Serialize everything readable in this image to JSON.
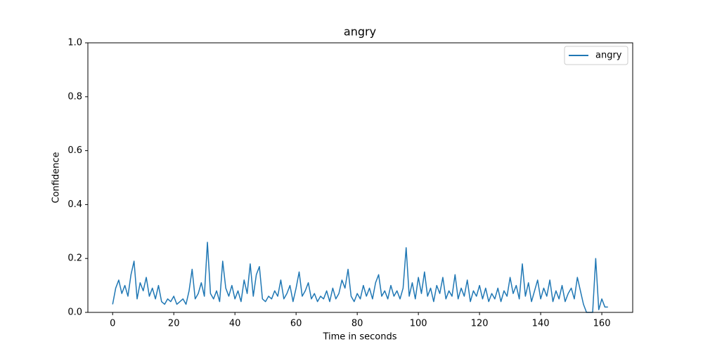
{
  "chart_data": {
    "type": "line",
    "title": "angry",
    "xlabel": "Time in seconds",
    "ylabel": "Confidence",
    "x": [
      0,
      1,
      2,
      3,
      4,
      5,
      6,
      7,
      8,
      9,
      10,
      11,
      12,
      13,
      14,
      15,
      16,
      17,
      18,
      19,
      20,
      21,
      22,
      23,
      24,
      25,
      26,
      27,
      28,
      29,
      30,
      31,
      32,
      33,
      34,
      35,
      36,
      37,
      38,
      39,
      40,
      41,
      42,
      43,
      44,
      45,
      46,
      47,
      48,
      49,
      50,
      51,
      52,
      53,
      54,
      55,
      56,
      57,
      58,
      59,
      60,
      61,
      62,
      63,
      64,
      65,
      66,
      67,
      68,
      69,
      70,
      71,
      72,
      73,
      74,
      75,
      76,
      77,
      78,
      79,
      80,
      81,
      82,
      83,
      84,
      85,
      86,
      87,
      88,
      89,
      90,
      91,
      92,
      93,
      94,
      95,
      96,
      97,
      98,
      99,
      100,
      101,
      102,
      103,
      104,
      105,
      106,
      107,
      108,
      109,
      110,
      111,
      112,
      113,
      114,
      115,
      116,
      117,
      118,
      119,
      120,
      121,
      122,
      123,
      124,
      125,
      126,
      127,
      128,
      129,
      130,
      131,
      132,
      133,
      134,
      135,
      136,
      137,
      138,
      139,
      140,
      141,
      142,
      143,
      144,
      145,
      146,
      147,
      148,
      149,
      150,
      151,
      152,
      153,
      154,
      155,
      156,
      157,
      158,
      159,
      160,
      161,
      162
    ],
    "series": [
      {
        "name": "angry",
        "color": "#1f77b4",
        "values": [
          0.03,
          0.09,
          0.12,
          0.07,
          0.1,
          0.06,
          0.14,
          0.19,
          0.05,
          0.11,
          0.08,
          0.13,
          0.06,
          0.09,
          0.05,
          0.1,
          0.04,
          0.03,
          0.05,
          0.04,
          0.06,
          0.03,
          0.04,
          0.05,
          0.03,
          0.08,
          0.16,
          0.05,
          0.07,
          0.11,
          0.06,
          0.26,
          0.07,
          0.05,
          0.08,
          0.04,
          0.19,
          0.09,
          0.06,
          0.1,
          0.05,
          0.08,
          0.04,
          0.12,
          0.07,
          0.18,
          0.06,
          0.14,
          0.17,
          0.05,
          0.04,
          0.06,
          0.05,
          0.08,
          0.06,
          0.12,
          0.05,
          0.07,
          0.1,
          0.04,
          0.09,
          0.15,
          0.06,
          0.08,
          0.11,
          0.05,
          0.07,
          0.04,
          0.06,
          0.05,
          0.08,
          0.04,
          0.09,
          0.05,
          0.07,
          0.12,
          0.09,
          0.16,
          0.06,
          0.04,
          0.07,
          0.05,
          0.1,
          0.06,
          0.09,
          0.05,
          0.11,
          0.14,
          0.06,
          0.08,
          0.05,
          0.1,
          0.06,
          0.08,
          0.05,
          0.09,
          0.24,
          0.06,
          0.11,
          0.05,
          0.13,
          0.07,
          0.15,
          0.06,
          0.09,
          0.04,
          0.1,
          0.07,
          0.13,
          0.05,
          0.08,
          0.06,
          0.14,
          0.05,
          0.09,
          0.06,
          0.12,
          0.04,
          0.08,
          0.06,
          0.1,
          0.05,
          0.09,
          0.04,
          0.07,
          0.05,
          0.09,
          0.04,
          0.08,
          0.06,
          0.13,
          0.07,
          0.1,
          0.05,
          0.18,
          0.06,
          0.11,
          0.04,
          0.08,
          0.12,
          0.05,
          0.09,
          0.06,
          0.12,
          0.04,
          0.08,
          0.05,
          0.1,
          0.04,
          0.07,
          0.09,
          0.05,
          0.13,
          0.08,
          0.03,
          0,
          0,
          0,
          0.2,
          0.01,
          0.05,
          0.02,
          0.02
        ]
      }
    ],
    "xlim": [
      -8.1,
      170.1
    ],
    "ylim": [
      0,
      1
    ],
    "xticks": [
      0,
      20,
      40,
      60,
      80,
      100,
      120,
      140,
      160
    ],
    "yticks": [
      {
        "value": 0,
        "label": "0.0"
      },
      0.2,
      0.4,
      0.6,
      0.8,
      {
        "value": 1,
        "label": "1.0"
      }
    ],
    "grid": false,
    "legend": "upper right"
  }
}
